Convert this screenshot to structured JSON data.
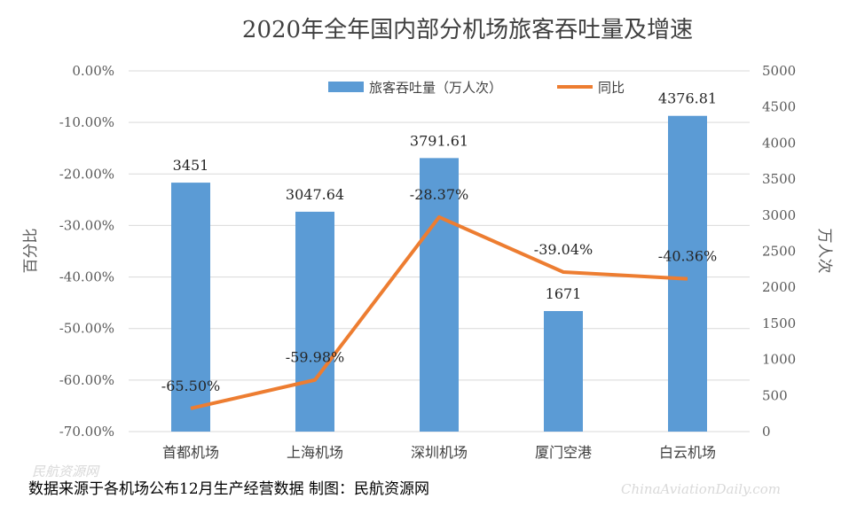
{
  "chart_data": {
    "type": "bar+line",
    "title": "2020年全年国内部分机场旅客吞吐量及增速",
    "categories": [
      "首都机场",
      "上海机场",
      "深圳机场",
      "厦门空港",
      "白云机场"
    ],
    "series": [
      {
        "name": "旅客吞吐量（万人次）",
        "type": "bar",
        "axis": "right",
        "color": "#5B9BD5",
        "values": [
          3451,
          3047.64,
          3791.61,
          1671,
          4376.81
        ],
        "labels": [
          "3451",
          "3047.64",
          "3791.61",
          "1671",
          "4376.81"
        ]
      },
      {
        "name": "同比",
        "type": "line",
        "axis": "left",
        "color": "#ED7D31",
        "values": [
          -65.5,
          -59.98,
          -28.37,
          -39.04,
          -40.36
        ],
        "labels": [
          "-65.50%",
          "-59.98%",
          "-28.37%",
          "-39.04%",
          "-40.36%"
        ]
      }
    ],
    "left_axis": {
      "label": "百分比",
      "range": [
        -70,
        0
      ],
      "ticks": [
        "0.00%",
        "-10.00%",
        "-20.00%",
        "-30.00%",
        "-40.00%",
        "-50.00%",
        "-60.00%",
        "-70.00%"
      ]
    },
    "right_axis": {
      "label": "万人次",
      "range": [
        0,
        5000
      ],
      "ticks": [
        "5000",
        "4500",
        "4000",
        "3500",
        "3000",
        "2500",
        "2000",
        "1500",
        "1000",
        "500",
        "0"
      ]
    },
    "grid": true,
    "legend_position": "top-center"
  },
  "footer": {
    "source": "数据来源于各机场公布12月生产经营数据   制图：民航资源网"
  },
  "watermarks": {
    "left": "民航资源网",
    "right": "ChinaAviationDaily.com"
  }
}
